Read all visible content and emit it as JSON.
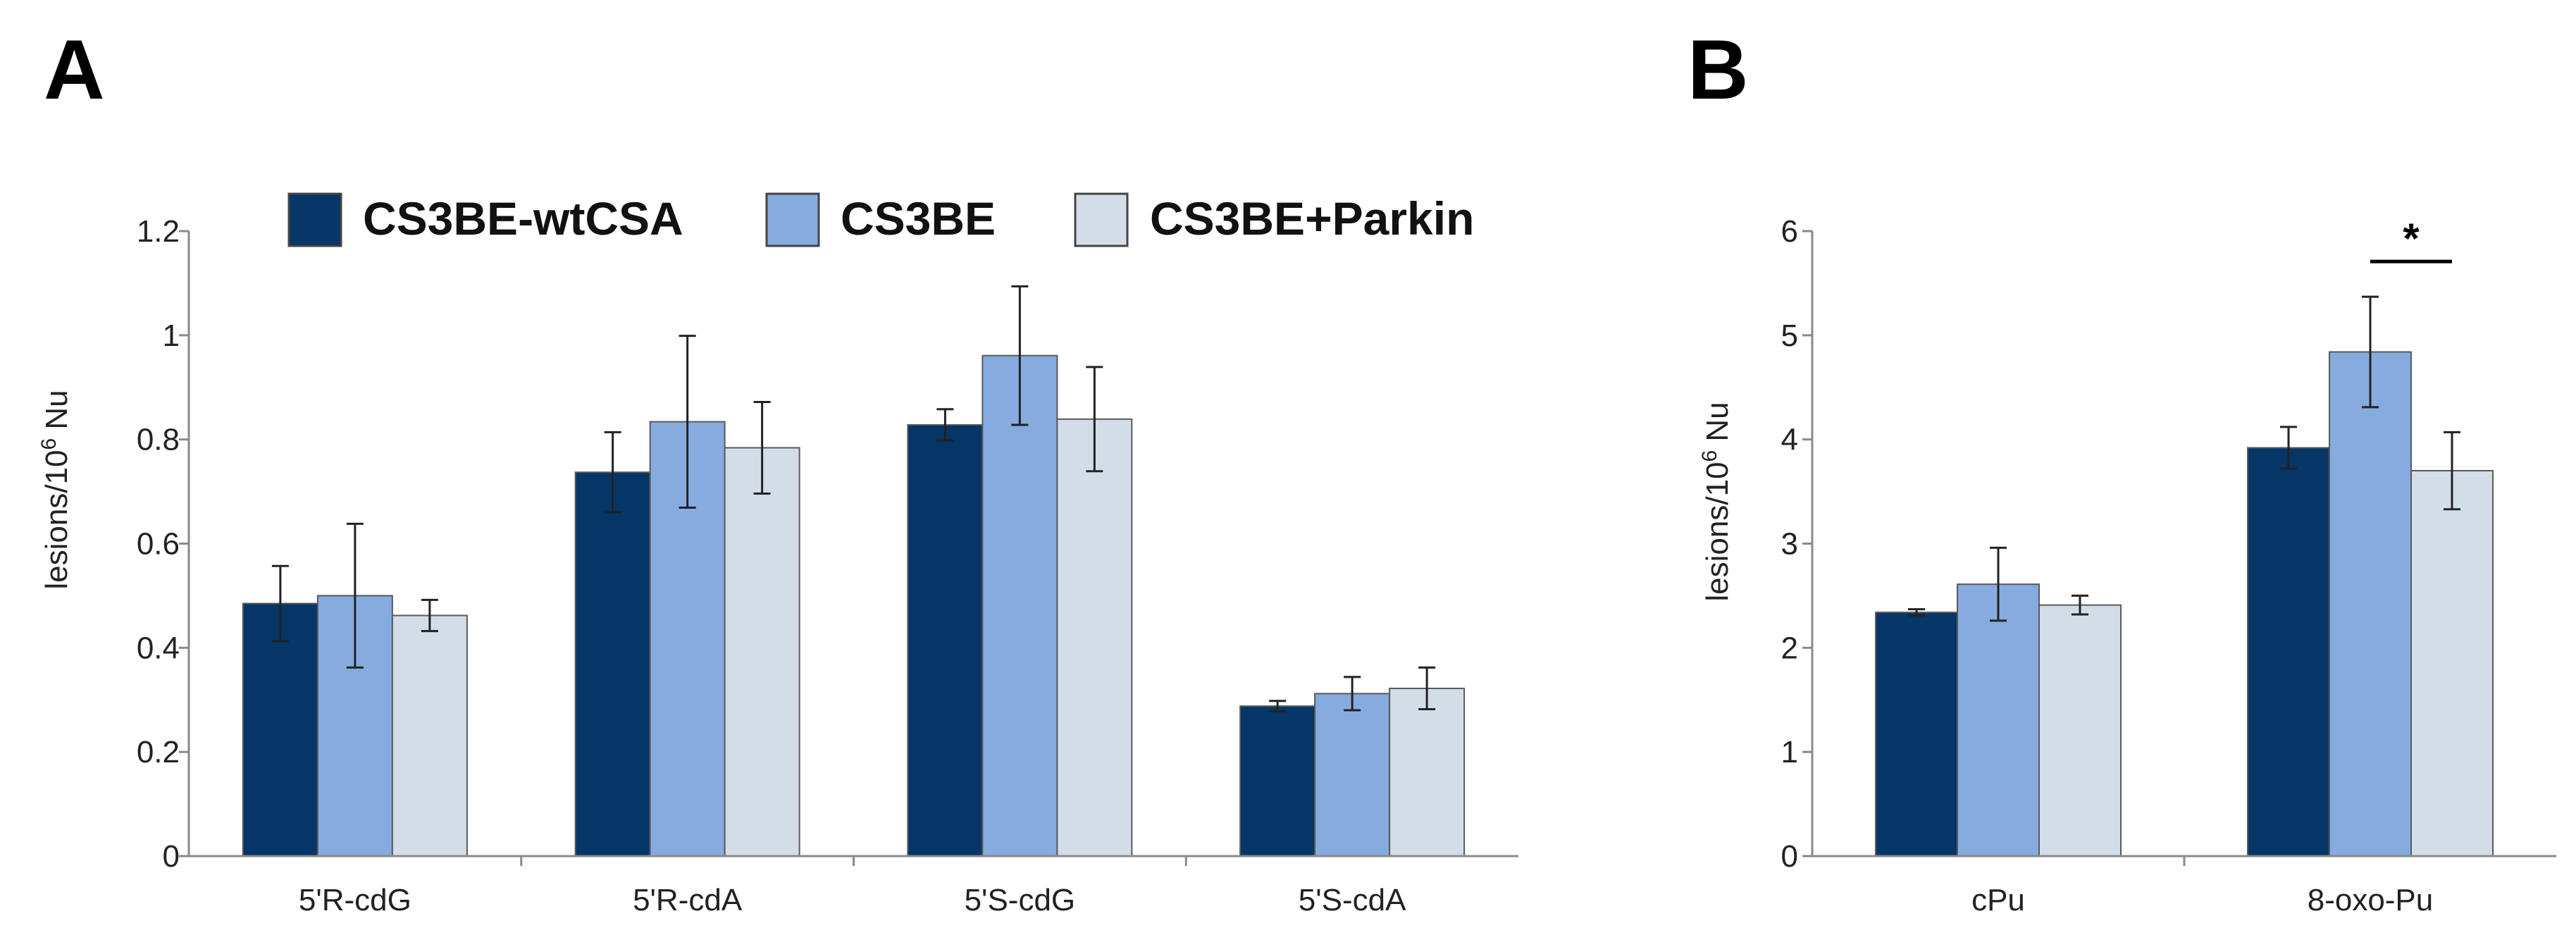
{
  "legend": [
    {
      "name": "CS3BE-wtCSA",
      "color": "#053667"
    },
    {
      "name": "CS3BE",
      "color": "#85ABDF"
    },
    {
      "name": "CS3BE+Parkin",
      "color": "#D3DDE8"
    }
  ],
  "chart_data": [
    {
      "panel": "A",
      "type": "bar",
      "categories": [
        "5'R-cdG",
        "5'R-cdA",
        "5'S-cdG",
        "5'S-cdA"
      ],
      "series": [
        {
          "name": "CS3BE-wtCSA",
          "values": [
            0.485,
            0.737,
            0.828,
            0.288
          ],
          "errors": [
            0.072,
            0.077,
            0.03,
            0.01
          ]
        },
        {
          "name": "CS3BE",
          "values": [
            0.5,
            0.834,
            0.961,
            0.312
          ],
          "errors": [
            0.138,
            0.165,
            0.133,
            0.032
          ]
        },
        {
          "name": "CS3BE+Parkin",
          "values": [
            0.462,
            0.784,
            0.839,
            0.322
          ],
          "errors": [
            0.03,
            0.088,
            0.1,
            0.04
          ]
        }
      ],
      "ylabel_main": "lesions/10",
      "ylabel_sup": "6",
      "ylabel_tail": " Nu",
      "ylim": [
        0,
        1.2
      ],
      "yticks": [
        "0",
        "0.2",
        "0.4",
        "0.6",
        "0.8",
        "1",
        "1.2"
      ],
      "ytick_values": [
        0,
        0.2,
        0.4,
        0.6,
        0.8,
        1.0,
        1.2
      ]
    },
    {
      "panel": "B",
      "type": "bar",
      "categories": [
        "cPu",
        "8-oxo-Pu"
      ],
      "series": [
        {
          "name": "CS3BE-wtCSA",
          "values": [
            2.34,
            3.92
          ],
          "errors": [
            0.03,
            0.2
          ]
        },
        {
          "name": "CS3BE",
          "values": [
            2.61,
            4.84
          ],
          "errors": [
            0.35,
            0.53
          ]
        },
        {
          "name": "CS3BE+Parkin",
          "values": [
            2.41,
            3.7
          ],
          "errors": [
            0.09,
            0.37
          ]
        }
      ],
      "ylabel_main": "lesions/10",
      "ylabel_sup": "6",
      "ylabel_tail": " Nu",
      "ylim": [
        0,
        6
      ],
      "yticks": [
        "0",
        "1",
        "2",
        "3",
        "4",
        "5",
        "6"
      ],
      "ytick_values": [
        0,
        1,
        2,
        3,
        4,
        5,
        6
      ],
      "annotation": {
        "text": "*",
        "category": "8-oxo-Pu",
        "between": [
          "CS3BE",
          "CS3BE+Parkin"
        ]
      }
    }
  ]
}
